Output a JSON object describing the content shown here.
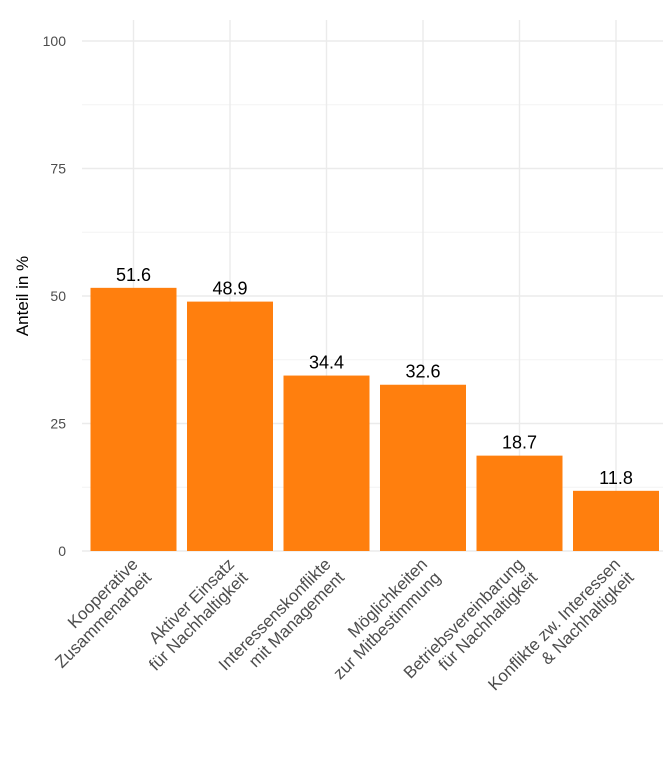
{
  "chart_data": {
    "type": "bar",
    "title": "",
    "xlabel": "",
    "ylabel": "Anteil in %",
    "ylim": [
      0,
      100
    ],
    "yticks": [
      0,
      25,
      50,
      75,
      100
    ],
    "grid": true,
    "legend": "none",
    "bar_color": "#ff7f0e",
    "categories": [
      [
        "Kooperative",
        "Zusammenarbeit"
      ],
      [
        "Aktiver Einsatz",
        "für Nachhaltigkeit"
      ],
      [
        "Interessenskonflikte",
        "mit Management"
      ],
      [
        "Möglichkeiten",
        "zur Mitbestimmung"
      ],
      [
        "Betriebsvereinbarung",
        "für Nachhaltigkeit"
      ],
      [
        "Konflikte zw. Interessen",
        "& Nachhaltigkeit"
      ]
    ],
    "values": [
      51.6,
      48.9,
      34.4,
      32.6,
      18.7,
      11.8
    ],
    "data_labels": [
      "51.6",
      "48.9",
      "34.4",
      "32.6",
      "18.7",
      "11.8"
    ]
  }
}
